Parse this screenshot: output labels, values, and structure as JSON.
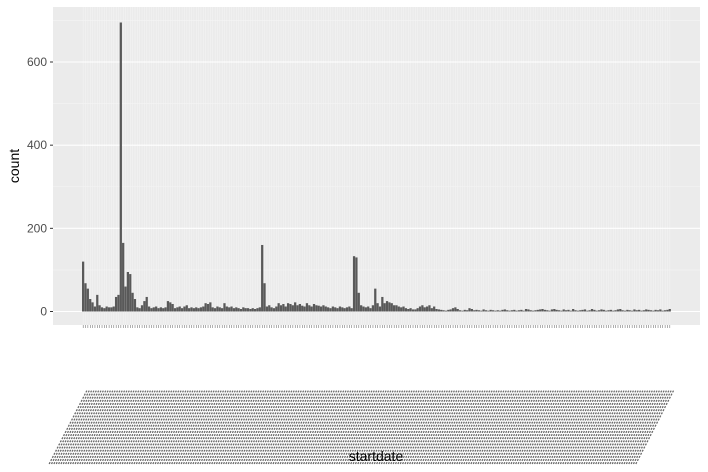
{
  "chart_data": {
    "type": "bar",
    "xlabel": "startdate",
    "ylabel": "count",
    "ylim": [
      0,
      720
    ],
    "yticks": [
      0,
      200,
      400,
      600
    ],
    "grid": true,
    "legend": "none",
    "colors": {
      "panel": "#ebebeb",
      "grid_major": "#ffffff",
      "grid_minor": "#f5f5f5",
      "bar": "#595959"
    },
    "x_labels_note": "x tick labels are dense overlapping rotated date strings that are not legible",
    "values": [
      120,
      68,
      55,
      30,
      22,
      12,
      40,
      15,
      10,
      8,
      12,
      10,
      10,
      12,
      35,
      40,
      695,
      165,
      60,
      95,
      90,
      45,
      30,
      10,
      8,
      15,
      25,
      35,
      12,
      8,
      10,
      12,
      8,
      10,
      8,
      10,
      25,
      22,
      18,
      8,
      10,
      12,
      8,
      12,
      15,
      8,
      10,
      8,
      10,
      8,
      10,
      12,
      20,
      18,
      22,
      10,
      8,
      12,
      10,
      8,
      20,
      12,
      10,
      12,
      8,
      10,
      8,
      6,
      10,
      8,
      8,
      6,
      8,
      6,
      8,
      10,
      160,
      68,
      12,
      15,
      10,
      8,
      12,
      20,
      15,
      18,
      12,
      20,
      18,
      15,
      22,
      15,
      18,
      14,
      12,
      20,
      15,
      12,
      18,
      15,
      14,
      12,
      15,
      12,
      10,
      8,
      12,
      10,
      8,
      12,
      10,
      8,
      10,
      12,
      8,
      133,
      130,
      45,
      15,
      12,
      10,
      12,
      8,
      15,
      55,
      20,
      12,
      35,
      20,
      25,
      22,
      20,
      15,
      15,
      12,
      10,
      12,
      8,
      6,
      8,
      5,
      5,
      8,
      12,
      15,
      10,
      12,
      15,
      8,
      12,
      6,
      5,
      4,
      3,
      2,
      4,
      5,
      8,
      10,
      6,
      3,
      2,
      4,
      3,
      8,
      6,
      3,
      4,
      3,
      2,
      5,
      3,
      2,
      4,
      3,
      2,
      3,
      2,
      4,
      5,
      3,
      2,
      3,
      4,
      2,
      3,
      4,
      2,
      6,
      5,
      3,
      2,
      3,
      4,
      5,
      6,
      4,
      3,
      2,
      5,
      6,
      4,
      3,
      2,
      5,
      3,
      4,
      2,
      6,
      3,
      2,
      3,
      4,
      5,
      2,
      3,
      6,
      4,
      2,
      3,
      5,
      4,
      2,
      3,
      4,
      2,
      3,
      5,
      6,
      3,
      2,
      4,
      3,
      2,
      5,
      3,
      4,
      2,
      3,
      5,
      4,
      3,
      2,
      4,
      3,
      5,
      2,
      3,
      4,
      6
    ]
  }
}
